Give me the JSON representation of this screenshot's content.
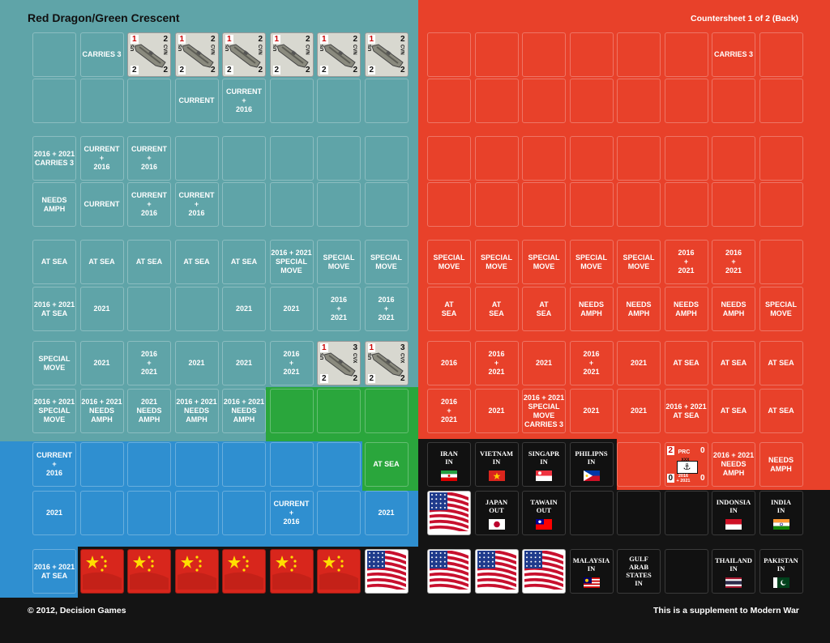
{
  "header": {
    "title": "Red Dragon/Green Crescent",
    "sheet_label": "Countersheet 1 of 2 (Back)"
  },
  "footer": {
    "copyright": "© 2012, Decision Games",
    "supplement": "This is a supplement to Modern War"
  },
  "colors": {
    "teal": "#5fa4a8",
    "red": "#e8412a",
    "blue": "#2f8fd0",
    "green": "#2aa63c",
    "black": "#141414",
    "gray_ship": "#8a8a7e"
  },
  "teal_counters": {
    "r1": [
      "CARRIES 3"
    ],
    "r2": [
      "CURRENT",
      "CURRENT\n+\n2016"
    ],
    "r3": [
      "2016 + 2021\nCARRIES 3",
      "CURRENT\n+\n2016",
      "CURRENT\n+\n2016"
    ],
    "r4": [
      "NEEDS\nAMPH",
      "CURRENT",
      "CURRENT\n+\n2016",
      "CURRENT\n+\n2016"
    ],
    "r5": [
      "AT SEA",
      "AT SEA",
      "AT SEA",
      "AT SEA",
      "AT SEA",
      "2016 + 2021\nSPECIAL\nMOVE",
      "SPECIAL\nMOVE",
      "SPECIAL\nMOVE"
    ],
    "r6": [
      "2016 + 2021\nAT SEA",
      "2021",
      "2021",
      "2021",
      "2016\n+\n2021",
      "2016\n+\n2021"
    ],
    "r7": [
      "SPECIAL\nMOVE",
      "2021",
      "2016\n+\n2021",
      "2021",
      "2021",
      "2016\n+\n2021"
    ],
    "r8": [
      "2016 + 2021\nSPECIAL\nMOVE",
      "2016 + 2021\nNEEDS\nAMPH",
      "2021\nNEEDS\nAMPH",
      "2016 + 2021\nNEEDS\nAMPH",
      "2016 + 2021\nNEEDS\nAMPH"
    ]
  },
  "carriers": {
    "attack": "1",
    "range_a": "2",
    "range_b": "3",
    "defense": "2",
    "move": "2",
    "label_us": "US",
    "label_cvn": "CVN",
    "label_years": "2016\n+2021",
    "label_cvx": "CVX"
  },
  "blue_counters": [
    "CURRENT\n+\n2016",
    "2021",
    "CURRENT\n+\n2016",
    "2021",
    "2016 + 2021\nAT SEA"
  ],
  "green_counters": [
    "AT SEA"
  ],
  "red_counters": {
    "r1": [
      "CARRIES 3"
    ],
    "r5": [
      "SPECIAL\nMOVE",
      "SPECIAL\nMOVE",
      "SPECIAL\nMOVE",
      "SPECIAL\nMOVE",
      "SPECIAL\nMOVE",
      "2016\n+\n2021",
      "2016\n+\n2021"
    ],
    "r6": [
      "AT\nSEA",
      "AT\nSEA",
      "AT\nSEA",
      "NEEDS\nAMPH",
      "NEEDS\nAMPH",
      "NEEDS\nAMPH",
      "NEEDS\nAMPH",
      "SPECIAL\nMOVE"
    ],
    "r7": [
      "2016",
      "2016\n+\n2021",
      "2021",
      "2016\n+\n2021",
      "2021",
      "AT SEA",
      "AT SEA",
      "AT SEA"
    ],
    "r8": [
      "2016\n+\n2021",
      "2021",
      "2016 + 2021\nSPECIAL\nMOVE\nCARRIES 3",
      "2021",
      "2021",
      "2016 + 2021\nAT SEA",
      "AT SEA",
      "AT SEA"
    ],
    "r9": [
      "2016 + 2021\nNEEDS\nAMPH",
      "NEEDS\nAMPH"
    ]
  },
  "prc_ship": {
    "attack": "2",
    "label": "PRC",
    "range": "0",
    "marks": "xxx",
    "defense": "0",
    "years": "2016\n+ 2021",
    "move": "0"
  },
  "nations": [
    {
      "name": "IRAN\nIN",
      "flag": "iran-flag"
    },
    {
      "name": "VIETNAM\nIN",
      "flag": "vietnam-flag"
    },
    {
      "name": "SINGAPR\nIN",
      "flag": "singapore-flag"
    },
    {
      "name": "PHILIPNS\nIN",
      "flag": "philippines-flag"
    },
    {
      "name": "JAPAN\nOUT",
      "flag": "japan-flag"
    },
    {
      "name": "TAWAIN\nOUT",
      "flag": "taiwan-flag"
    },
    {
      "name": "INDONSIA\nIN",
      "flag": "indonesia-flag"
    },
    {
      "name": "INDIA\nIN",
      "flag": "india-flag"
    },
    {
      "name": "MALAYSIA\nIN",
      "flag": "malaysia-flag"
    },
    {
      "name": "GULF\nARAB\nSTATES\nIN",
      "flag": ""
    },
    {
      "name": "THAILAND\nIN",
      "flag": "thailand-flag"
    },
    {
      "name": "PAKISTAN\nIN",
      "flag": "pakistan-flag"
    }
  ],
  "flag_counters": {
    "china_count": 6,
    "usa_count": 5
  }
}
